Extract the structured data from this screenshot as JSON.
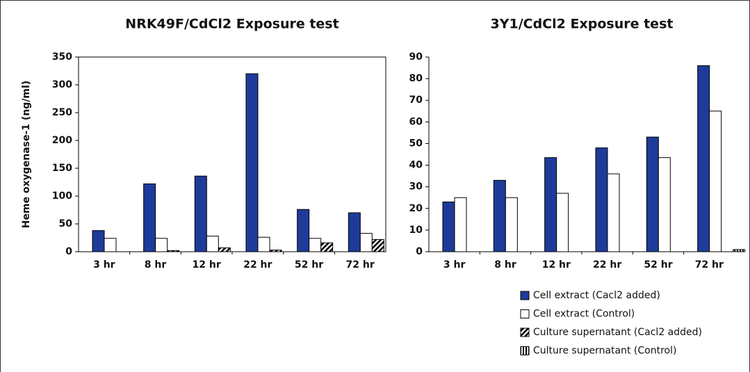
{
  "chart_data": [
    {
      "type": "bar",
      "title": "NRK49F/CdCl2 Exposure test",
      "y_label": "Heme oxygenase-1 (ng/ml)",
      "categories": [
        "3 hr",
        "8 hr",
        "12 hr",
        "22 hr",
        "52 hr",
        "72 hr"
      ],
      "ylim": [
        0,
        350
      ],
      "yticks": [
        0,
        50,
        100,
        150,
        200,
        250,
        300,
        350
      ],
      "frame": true,
      "series": [
        {
          "color": "#1f3b9a",
          "values": [
            38,
            122,
            136,
            320,
            76,
            70
          ]
        },
        {
          "color": "#ffffff",
          "values": [
            24,
            24,
            28,
            26,
            24,
            33
          ]
        },
        {
          "color": "#000000",
          "pattern": "diagonal",
          "values": [
            null,
            2,
            7,
            3,
            16,
            22
          ]
        },
        {
          "color": "#000000",
          "pattern": "vertical",
          "values": [
            null,
            null,
            null,
            null,
            null,
            null
          ]
        }
      ]
    },
    {
      "type": "bar",
      "title": "3Y1/CdCl2 Exposure test",
      "categories": [
        "3 hr",
        "8 hr",
        "12 hr",
        "22 hr",
        "52 hr",
        "72 hr"
      ],
      "ylim": [
        0,
        90
      ],
      "yticks": [
        0,
        10,
        20,
        30,
        40,
        50,
        60,
        70,
        80,
        90
      ],
      "frame": false,
      "series": [
        {
          "name": "Cell extract (Cacl2 added)",
          "color": "#1f3b9a",
          "values": [
            23,
            33,
            43.5,
            48,
            53,
            86
          ]
        },
        {
          "name": "Cell extract (Control)",
          "color": "#ffffff",
          "values": [
            25,
            25,
            27,
            36,
            43.5,
            65
          ]
        },
        {
          "name": "Culture supernatant (Cacl2 added)",
          "color": "#000000",
          "pattern": "diagonal",
          "values": [
            null,
            null,
            null,
            null,
            null,
            null
          ]
        },
        {
          "name": "Culture supernatant (Control)",
          "color": "#000000",
          "pattern": "vertical",
          "values": [
            null,
            null,
            null,
            null,
            null,
            1
          ]
        }
      ]
    }
  ]
}
